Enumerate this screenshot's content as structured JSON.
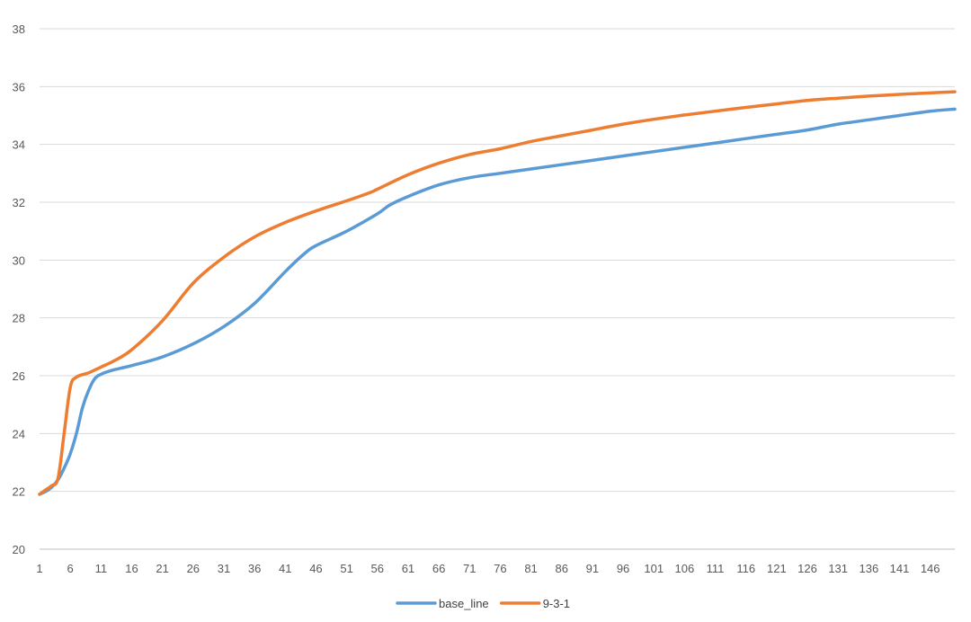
{
  "chart_data": {
    "type": "line",
    "title": "",
    "xlabel": "",
    "ylabel": "",
    "ylim": [
      20,
      38
    ],
    "yticks": [
      "20",
      "22",
      "24",
      "26",
      "28",
      "30",
      "32",
      "34",
      "36",
      "38"
    ],
    "xlim": [
      1,
      150
    ],
    "xticks": [
      "1",
      "6",
      "11",
      "16",
      "21",
      "26",
      "31",
      "36",
      "41",
      "46",
      "51",
      "56",
      "61",
      "66",
      "71",
      "76",
      "81",
      "86",
      "91",
      "96",
      "101",
      "106",
      "111",
      "116",
      "121",
      "126",
      "131",
      "136",
      "141",
      "146"
    ],
    "grid": true,
    "legend_position": "bottom",
    "series": [
      {
        "name": "base_line",
        "color": "#5b9bd5",
        "points": [
          [
            1,
            21.9
          ],
          [
            2,
            22.0
          ],
          [
            3,
            22.15
          ],
          [
            4,
            22.4
          ],
          [
            5,
            22.8
          ],
          [
            6,
            23.3
          ],
          [
            7,
            24.0
          ],
          [
            8,
            24.9
          ],
          [
            9,
            25.5
          ],
          [
            10,
            25.9
          ],
          [
            11,
            26.05
          ],
          [
            13,
            26.2
          ],
          [
            16,
            26.35
          ],
          [
            21,
            26.65
          ],
          [
            26,
            27.1
          ],
          [
            31,
            27.7
          ],
          [
            36,
            28.5
          ],
          [
            41,
            29.6
          ],
          [
            44,
            30.2
          ],
          [
            46,
            30.5
          ],
          [
            51,
            31.0
          ],
          [
            56,
            31.6
          ],
          [
            58,
            31.9
          ],
          [
            61,
            32.2
          ],
          [
            66,
            32.6
          ],
          [
            71,
            32.85
          ],
          [
            76,
            33.0
          ],
          [
            81,
            33.15
          ],
          [
            86,
            33.3
          ],
          [
            91,
            33.45
          ],
          [
            96,
            33.6
          ],
          [
            101,
            33.75
          ],
          [
            106,
            33.9
          ],
          [
            111,
            34.05
          ],
          [
            116,
            34.2
          ],
          [
            121,
            34.35
          ],
          [
            126,
            34.5
          ],
          [
            131,
            34.7
          ],
          [
            136,
            34.85
          ],
          [
            141,
            35.0
          ],
          [
            146,
            35.15
          ],
          [
            150,
            35.22
          ]
        ]
      },
      {
        "name": "9-3-1",
        "color": "#ed7d31",
        "points": [
          [
            1,
            21.9
          ],
          [
            2,
            22.05
          ],
          [
            3,
            22.2
          ],
          [
            4,
            22.45
          ],
          [
            5,
            24.0
          ],
          [
            6,
            25.6
          ],
          [
            7,
            25.95
          ],
          [
            9,
            26.1
          ],
          [
            11,
            26.3
          ],
          [
            13,
            26.5
          ],
          [
            16,
            26.9
          ],
          [
            21,
            27.9
          ],
          [
            26,
            29.2
          ],
          [
            31,
            30.1
          ],
          [
            36,
            30.8
          ],
          [
            41,
            31.3
          ],
          [
            46,
            31.7
          ],
          [
            51,
            32.05
          ],
          [
            55,
            32.35
          ],
          [
            56,
            32.45
          ],
          [
            61,
            32.95
          ],
          [
            66,
            33.35
          ],
          [
            71,
            33.65
          ],
          [
            76,
            33.85
          ],
          [
            81,
            34.1
          ],
          [
            86,
            34.3
          ],
          [
            91,
            34.5
          ],
          [
            96,
            34.7
          ],
          [
            101,
            34.87
          ],
          [
            106,
            35.02
          ],
          [
            111,
            35.15
          ],
          [
            116,
            35.28
          ],
          [
            121,
            35.4
          ],
          [
            126,
            35.52
          ],
          [
            131,
            35.6
          ],
          [
            136,
            35.67
          ],
          [
            141,
            35.73
          ],
          [
            146,
            35.78
          ],
          [
            150,
            35.82
          ]
        ]
      }
    ]
  }
}
